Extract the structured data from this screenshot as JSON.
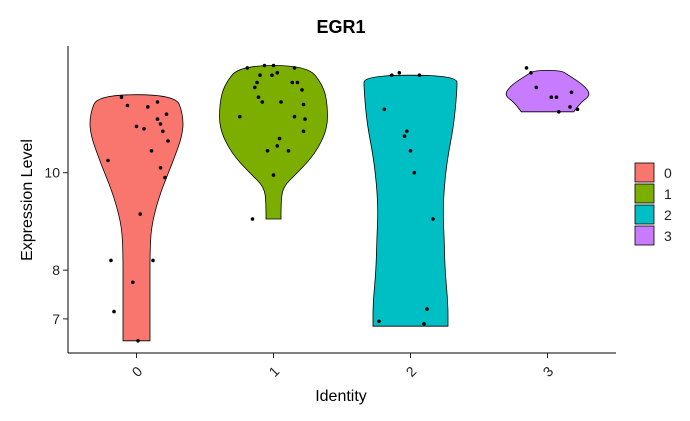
{
  "chart_data": {
    "type": "violin",
    "title": "EGR1",
    "xlabel": "Identity",
    "ylabel": "Expression Level",
    "categories": [
      "0",
      "1",
      "2",
      "3"
    ],
    "y_ticks": [
      7,
      8,
      10
    ],
    "ylim": [
      6.3,
      12.6
    ],
    "grid": false,
    "legend": {
      "position": "right",
      "entries": [
        {
          "label": "0",
          "color": "#F8766D"
        },
        {
          "label": "1",
          "color": "#7CAE00"
        },
        {
          "label": "2",
          "color": "#00BFC4"
        },
        {
          "label": "3",
          "color": "#C77CFF"
        }
      ]
    },
    "violins": [
      {
        "name": "0",
        "color": "#F8766D",
        "y_min": 6.55,
        "y_max": 11.6,
        "profile": [
          [
            6.55,
            0.18
          ],
          [
            7.5,
            0.18
          ],
          [
            8.5,
            0.18
          ],
          [
            9.0,
            0.21
          ],
          [
            9.6,
            0.32
          ],
          [
            10.2,
            0.48
          ],
          [
            10.8,
            0.62
          ],
          [
            11.2,
            0.62
          ],
          [
            11.6,
            0.52
          ]
        ],
        "points": [
          [
            0.02,
            6.55
          ],
          [
            -0.3,
            7.15
          ],
          [
            -0.05,
            7.75
          ],
          [
            -0.34,
            8.2
          ],
          [
            0.22,
            8.2
          ],
          [
            0.05,
            9.15
          ],
          [
            0.38,
            9.9
          ],
          [
            -0.38,
            10.25
          ],
          [
            0.32,
            10.1
          ],
          [
            0.2,
            10.45
          ],
          [
            0.42,
            10.65
          ],
          [
            0.35,
            10.85
          ],
          [
            0.0,
            10.95
          ],
          [
            0.1,
            10.9
          ],
          [
            0.32,
            11.0
          ],
          [
            0.28,
            11.1
          ],
          [
            0.4,
            11.2
          ],
          [
            0.15,
            11.35
          ],
          [
            -0.2,
            11.55
          ],
          [
            -0.12,
            11.38
          ],
          [
            0.28,
            11.45
          ]
        ]
      },
      {
        "name": "1",
        "color": "#7CAE00",
        "y_min": 9.05,
        "y_max": 12.2,
        "profile": [
          [
            9.05,
            0.1
          ],
          [
            9.35,
            0.1
          ],
          [
            9.7,
            0.12
          ],
          [
            10.0,
            0.32
          ],
          [
            10.4,
            0.56
          ],
          [
            10.9,
            0.72
          ],
          [
            11.4,
            0.72
          ],
          [
            11.8,
            0.66
          ],
          [
            12.2,
            0.45
          ]
        ],
        "points": [
          [
            -0.28,
            9.05
          ],
          [
            0.0,
            9.95
          ],
          [
            -0.08,
            10.45
          ],
          [
            0.2,
            10.45
          ],
          [
            0.05,
            10.55
          ],
          [
            0.08,
            10.7
          ],
          [
            0.4,
            10.85
          ],
          [
            0.42,
            11.1
          ],
          [
            0.28,
            11.15
          ],
          [
            -0.45,
            11.15
          ],
          [
            0.4,
            11.4
          ],
          [
            -0.15,
            11.45
          ],
          [
            0.1,
            11.45
          ],
          [
            -0.2,
            11.55
          ],
          [
            0.38,
            11.7
          ],
          [
            0.32,
            11.85
          ],
          [
            -0.25,
            11.75
          ],
          [
            -0.22,
            11.85
          ],
          [
            0.25,
            11.85
          ],
          [
            -0.02,
            12.0
          ],
          [
            0.05,
            12.05
          ],
          [
            -0.18,
            12.0
          ],
          [
            -0.12,
            12.2
          ],
          [
            0.28,
            12.15
          ],
          [
            -0.35,
            12.15
          ],
          [
            0.0,
            12.2
          ]
        ]
      },
      {
        "name": "2",
        "color": "#00BFC4",
        "y_min": 6.85,
        "y_max": 12.0,
        "profile": [
          [
            6.85,
            0.5
          ],
          [
            7.3,
            0.5
          ],
          [
            8.0,
            0.46
          ],
          [
            8.6,
            0.45
          ],
          [
            9.3,
            0.43
          ],
          [
            10.2,
            0.48
          ],
          [
            11.0,
            0.58
          ],
          [
            11.7,
            0.62
          ],
          [
            12.0,
            0.62
          ]
        ],
        "points": [
          [
            -0.42,
            6.95
          ],
          [
            0.18,
            6.9
          ],
          [
            0.22,
            7.2
          ],
          [
            0.3,
            9.05
          ],
          [
            0.05,
            10.0
          ],
          [
            0.0,
            10.45
          ],
          [
            -0.08,
            10.75
          ],
          [
            -0.05,
            10.85
          ],
          [
            -0.35,
            11.3
          ],
          [
            -0.25,
            12.0
          ],
          [
            0.12,
            12.0
          ],
          [
            -0.15,
            12.05
          ]
        ]
      },
      {
        "name": "3",
        "color": "#C77CFF",
        "y_min": 11.25,
        "y_max": 12.1,
        "profile": [
          [
            11.25,
            0.35
          ],
          [
            11.45,
            0.45
          ],
          [
            11.6,
            0.58
          ],
          [
            11.8,
            0.48
          ],
          [
            12.0,
            0.28
          ],
          [
            12.1,
            0.18
          ]
        ],
        "points": [
          [
            -0.28,
            12.15
          ],
          [
            -0.22,
            12.05
          ],
          [
            -0.15,
            11.75
          ],
          [
            0.05,
            11.55
          ],
          [
            0.12,
            11.55
          ],
          [
            0.32,
            11.65
          ],
          [
            0.15,
            11.25
          ],
          [
            0.3,
            11.35
          ],
          [
            0.4,
            11.3
          ]
        ]
      }
    ]
  }
}
